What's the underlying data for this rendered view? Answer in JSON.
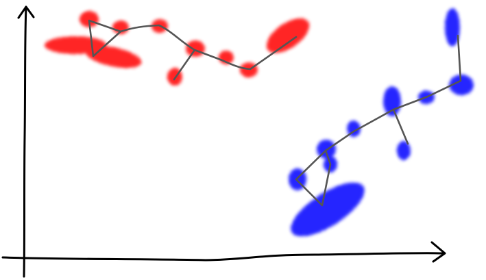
{
  "diagram": {
    "axes": {
      "color": "#000000"
    },
    "clusters": [
      {
        "name": "red-cluster",
        "color": "#ff0000"
      },
      {
        "name": "blue-cluster",
        "color": "#0000ff"
      }
    ],
    "edge_color": "#555555"
  }
}
